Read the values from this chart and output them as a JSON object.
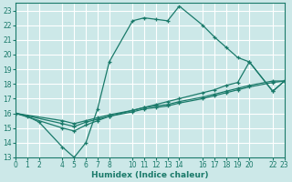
{
  "xlabel": "Humidex (Indice chaleur)",
  "bg_color": "#cce8e8",
  "grid_color": "#ffffff",
  "line_color": "#1a7a6a",
  "xlim": [
    0,
    23
  ],
  "ylim": [
    13,
    23.5
  ],
  "xticks": [
    0,
    1,
    2,
    4,
    5,
    6,
    7,
    8,
    10,
    11,
    12,
    13,
    14,
    16,
    17,
    18,
    19,
    20,
    22,
    23
  ],
  "yticks": [
    13,
    14,
    15,
    16,
    17,
    18,
    19,
    20,
    21,
    22,
    23
  ],
  "curve_x": [
    0,
    1,
    2,
    4,
    5,
    6,
    7,
    8,
    10,
    11,
    12,
    13,
    14,
    16,
    17,
    18,
    19,
    20,
    22,
    23
  ],
  "curve_y": [
    16,
    15.8,
    15.4,
    13.7,
    13.0,
    14.0,
    16.3,
    19.5,
    22.3,
    22.5,
    22.4,
    22.3,
    23.3,
    22.0,
    21.2,
    20.5,
    19.8,
    19.5,
    17.5,
    18.2
  ],
  "line1_x": [
    0,
    4,
    5,
    6,
    7,
    8,
    10,
    11,
    12,
    13,
    14,
    16,
    17,
    18,
    19,
    20,
    22,
    23
  ],
  "line1_y": [
    16,
    15.5,
    15.3,
    15.5,
    15.7,
    15.9,
    16.2,
    16.4,
    16.5,
    16.6,
    16.8,
    17.1,
    17.3,
    17.5,
    17.7,
    17.9,
    18.2,
    18.2
  ],
  "line2_x": [
    0,
    4,
    5,
    6,
    7,
    8,
    10,
    11,
    12,
    13,
    14,
    16,
    17,
    18,
    19,
    20,
    22,
    23
  ],
  "line2_y": [
    16,
    15.3,
    15.1,
    15.4,
    15.6,
    15.8,
    16.1,
    16.3,
    16.4,
    16.5,
    16.7,
    17.0,
    17.2,
    17.4,
    17.6,
    17.8,
    18.1,
    18.2
  ],
  "line3_x": [
    0,
    4,
    5,
    6,
    7,
    8,
    10,
    11,
    12,
    13,
    14,
    16,
    17,
    18,
    19,
    20,
    22,
    23
  ],
  "line3_y": [
    16,
    15.0,
    14.8,
    15.2,
    15.5,
    15.8,
    16.2,
    16.4,
    16.6,
    16.8,
    17.0,
    17.4,
    17.6,
    17.9,
    18.1,
    19.5,
    17.5,
    18.2
  ]
}
